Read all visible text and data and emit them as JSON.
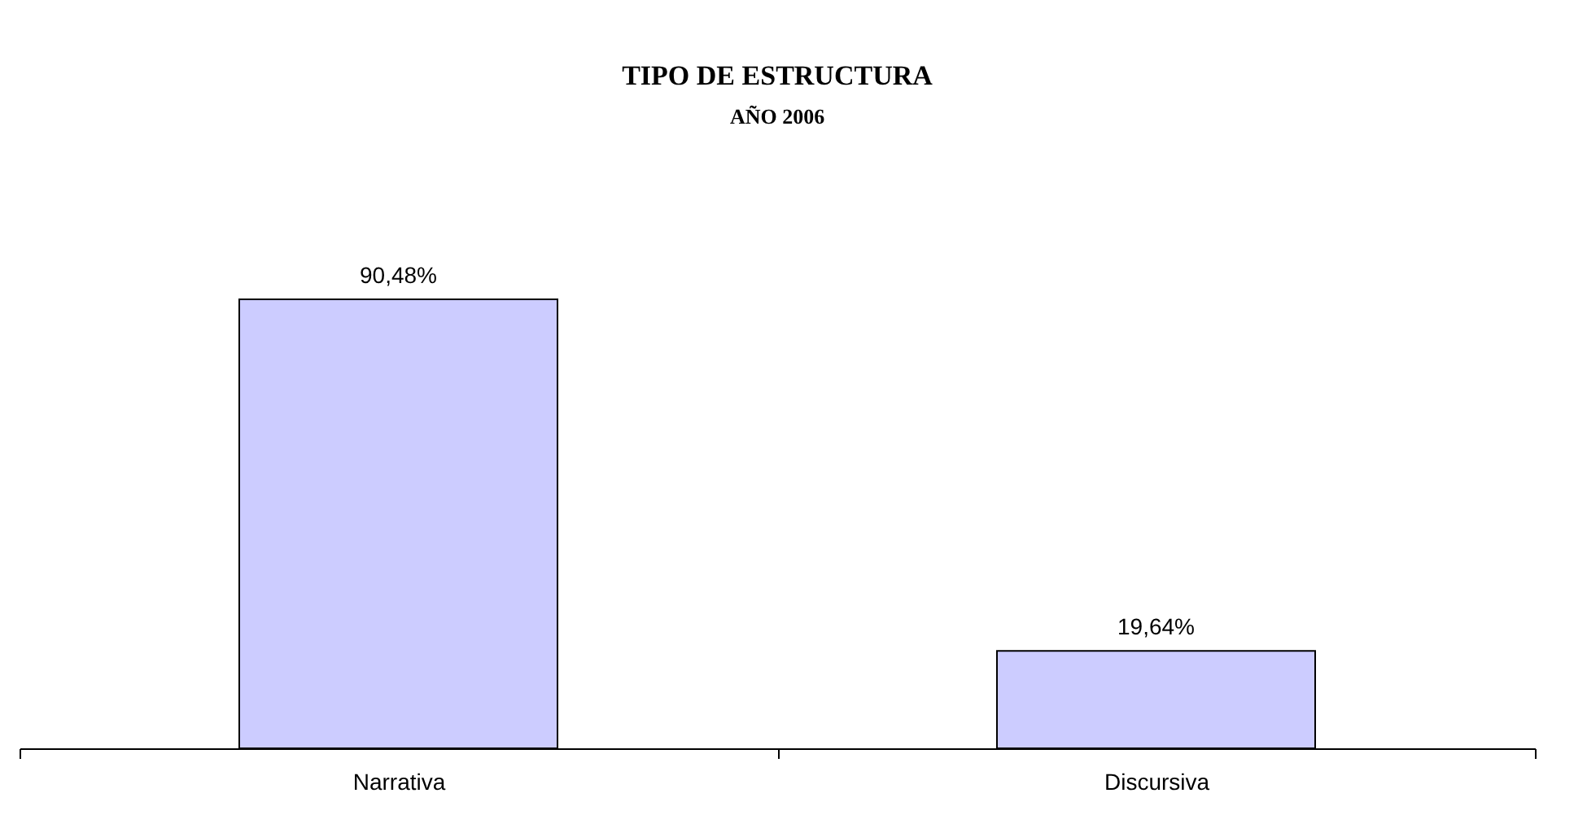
{
  "chart_data": {
    "type": "bar",
    "title": "TIPO DE ESTRUCTURA",
    "subtitle": "AÑO 2006",
    "categories": [
      "Narrativa",
      "Discursiva"
    ],
    "values": [
      90.48,
      19.64
    ],
    "value_labels": [
      "90,48%",
      "19,64%"
    ],
    "color": "#ccccff"
  }
}
